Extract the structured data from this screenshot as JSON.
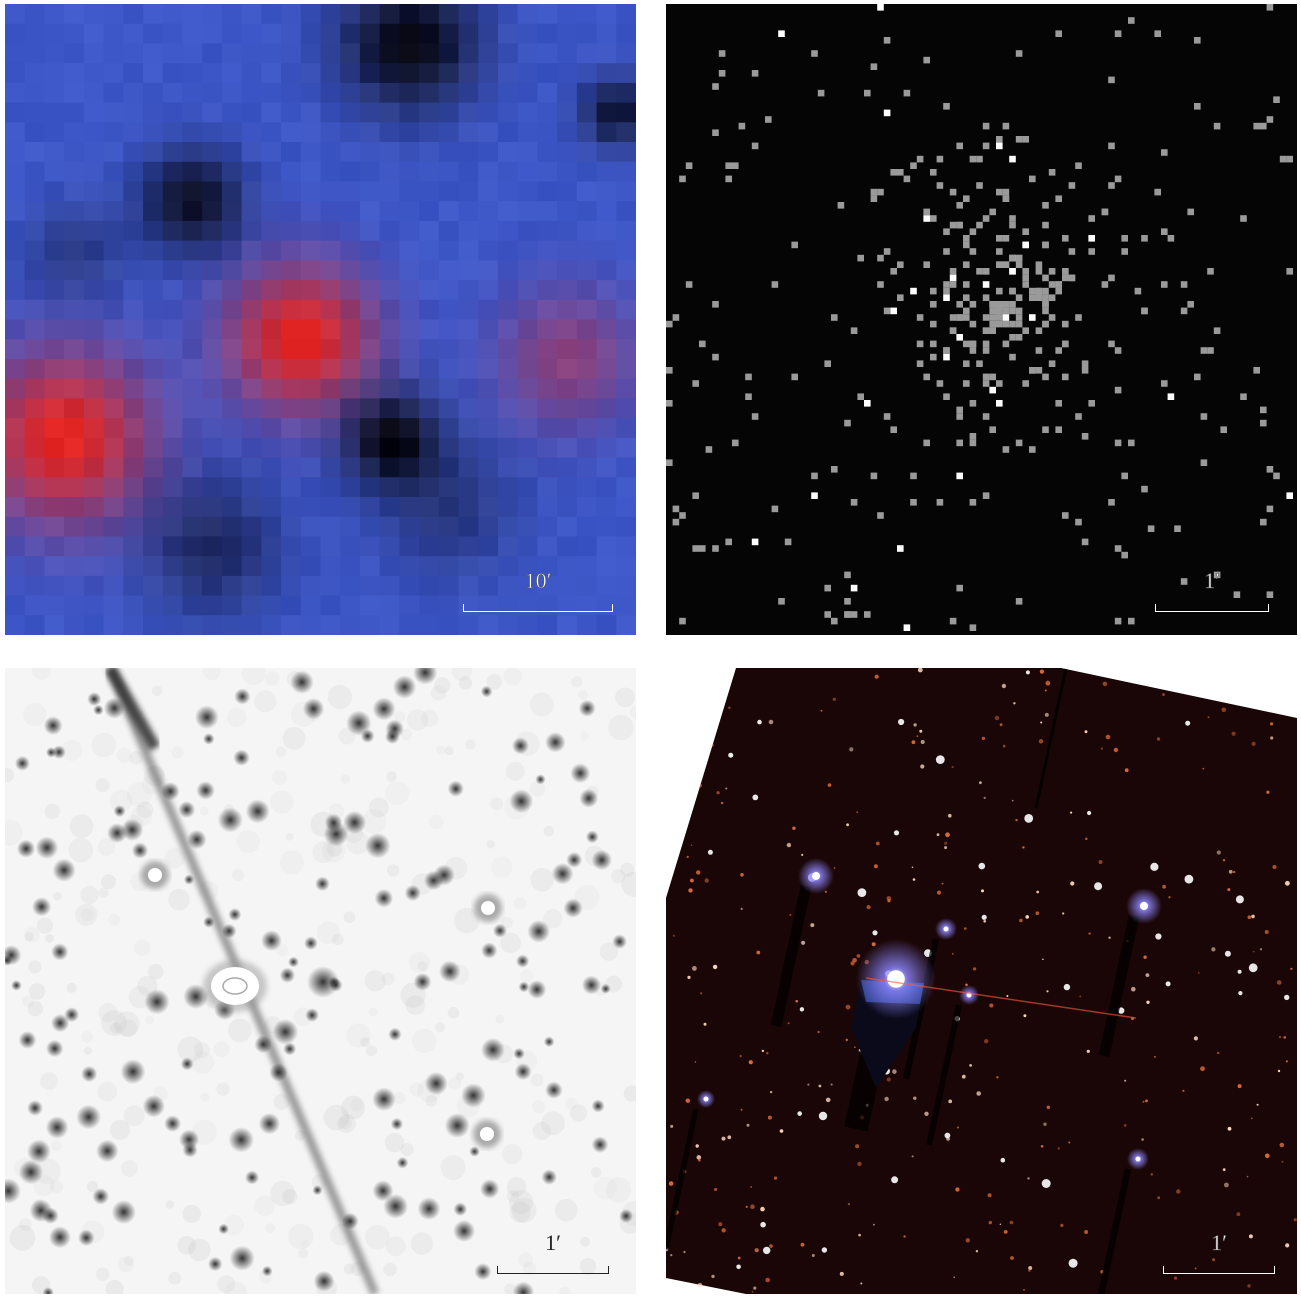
{
  "panels": [
    {
      "id": "top-left",
      "description_type": "false-color low-resolution sky map",
      "colors": {
        "background": "#3d57c8",
        "hot": "#e8251f",
        "cold": "#05050f"
      },
      "scale_label": "10′"
    },
    {
      "id": "top-right",
      "description_type": "sparse photon-count image",
      "colors": {
        "background": "#050505",
        "count": "#9a9a9a",
        "bright_count": "#ffffff"
      },
      "scale_label": "1′"
    },
    {
      "id": "bottom-left",
      "description_type": "inverted grayscale star field",
      "colors": {
        "background": "#f5f5f5",
        "star": "#2a2a2a"
      },
      "scale_label": "1′"
    },
    {
      "id": "bottom-right",
      "description_type": "color composite star field",
      "colors": {
        "background": "#1a0606",
        "star": "#ffffff",
        "glow": "#8d86ff",
        "faint_star": "#d96a3a"
      },
      "scale_label": "1′"
    }
  ]
}
